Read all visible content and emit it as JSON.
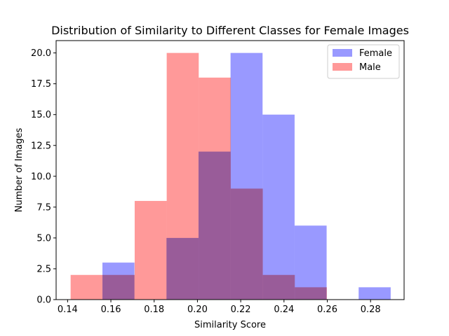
{
  "chart_data": {
    "type": "bar",
    "subtype": "overlapping-histogram",
    "title": "Distribution of Similarity to Different Classes for Female Images",
    "xlabel": "Similarity Score",
    "ylabel": "Number of Images",
    "xlim": [
      0.1347,
      0.2955
    ],
    "ylim": [
      0,
      21
    ],
    "xticks": [
      0.14,
      0.16,
      0.18,
      0.2,
      0.22,
      0.24,
      0.26,
      0.28
    ],
    "xtick_labels": [
      "0.14",
      "0.16",
      "0.18",
      "0.20",
      "0.22",
      "0.24",
      "0.26",
      "0.28"
    ],
    "yticks": [
      0,
      2.5,
      5,
      7.5,
      10,
      12.5,
      15,
      17.5,
      20
    ],
    "ytick_labels": [
      "0.0",
      "2.5",
      "5.0",
      "7.5",
      "10.0",
      "12.5",
      "15.0",
      "17.5",
      "20.0"
    ],
    "grid": false,
    "legend_position": "top-right",
    "series": [
      {
        "name": "Female",
        "color": "#9999ff",
        "alpha": 0.4,
        "bin_edges": [
          0.1561,
          0.1709,
          0.1857,
          0.2005,
          0.2153,
          0.2301,
          0.2449,
          0.2597,
          0.2745,
          0.2893
        ],
        "counts": [
          3,
          0,
          5,
          12,
          20,
          15,
          6,
          0,
          1
        ]
      },
      {
        "name": "Male",
        "color": "#ff9999",
        "alpha": 0.4,
        "bin_edges": [
          0.1414,
          0.1562,
          0.171,
          0.1858,
          0.2006,
          0.2154,
          0.2302,
          0.245,
          0.2598
        ],
        "counts": [
          2,
          2,
          8,
          20,
          18,
          9,
          2,
          1
        ]
      }
    ]
  }
}
